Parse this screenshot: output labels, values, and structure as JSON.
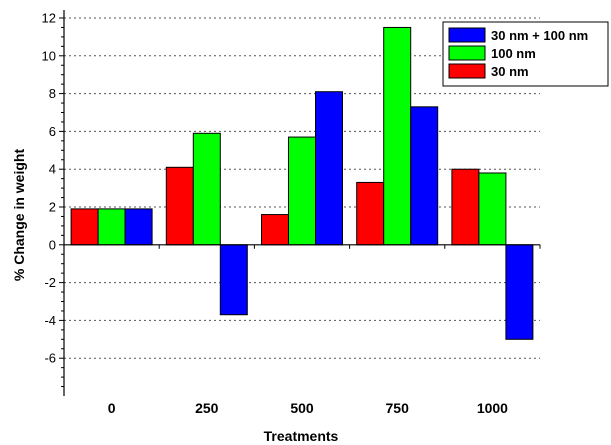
{
  "chart_data": {
    "type": "bar",
    "categories": [
      "0",
      "250",
      "500",
      "750",
      "1000"
    ],
    "series": [
      {
        "name": "30 nm",
        "color": "#ff0000",
        "values": [
          1.9,
          4.1,
          1.6,
          3.3,
          4.0
        ]
      },
      {
        "name": "100 nm",
        "color": "#00ff00",
        "values": [
          1.9,
          5.9,
          5.7,
          11.5,
          3.8
        ]
      },
      {
        "name": "30 nm + 100 nm",
        "color": "#0000ff",
        "values": [
          1.9,
          -3.7,
          8.1,
          7.3,
          -5.0
        ]
      }
    ],
    "legend_order": [
      "30 nm + 100 nm",
      "100 nm",
      "30 nm"
    ],
    "legend_position": "top-right",
    "xlabel": "Treatments",
    "ylabel": "% Change in weight",
    "ylim": [
      -8,
      12
    ],
    "yticks": [
      {
        "value": 12,
        "label": "12"
      },
      {
        "value": 10,
        "label": "10"
      },
      {
        "value": 8,
        "label": "8"
      },
      {
        "value": 6,
        "label": "6"
      },
      {
        "value": 4,
        "label": "4"
      },
      {
        "value": 2,
        "label": "2"
      },
      {
        "value": 0,
        "label": "0"
      },
      {
        "value": -2,
        "label": "-2"
      },
      {
        "value": -4,
        "label": "-4"
      },
      {
        "value": -6,
        "label": "-6"
      }
    ],
    "grid": "horizontal-dotted"
  }
}
